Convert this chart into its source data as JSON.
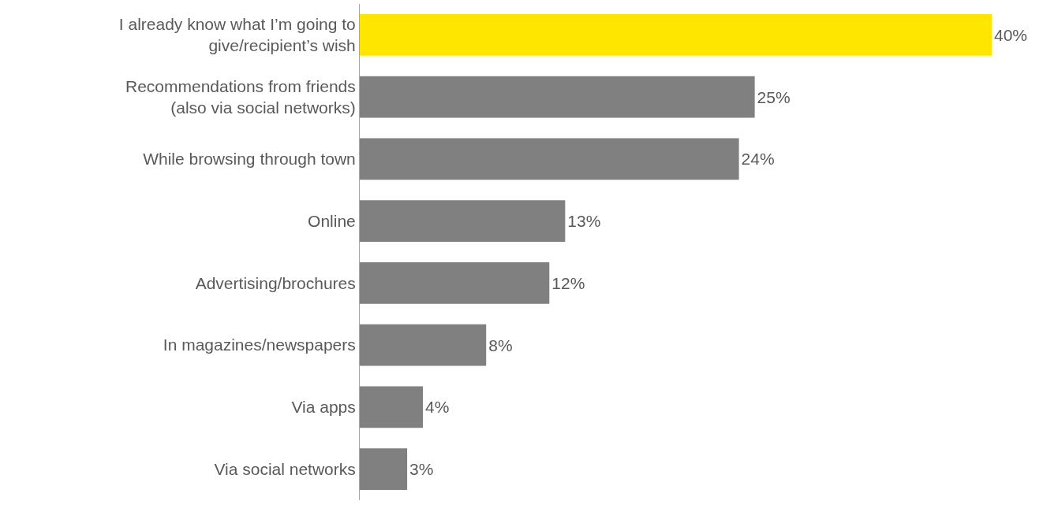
{
  "chart_data": {
    "type": "bar",
    "orientation": "horizontal",
    "categories": [
      "I already know what I’m going to give/recipient’s wish",
      "Recommendations from friends (also via social networks)",
      "While browsing through town",
      "Online",
      "Advertising/brochures",
      "In magazines/newspapers",
      "Via apps",
      "Via social networks"
    ],
    "values": [
      40,
      25,
      24,
      13,
      12,
      8,
      4,
      3
    ],
    "colors": [
      "#ffe600",
      "#808080",
      "#808080",
      "#808080",
      "#808080",
      "#808080",
      "#808080",
      "#808080"
    ],
    "value_labels": [
      "40%",
      "25%",
      "24%",
      "13%",
      "12%",
      "8%",
      "4%",
      "3%"
    ],
    "xlim": [
      0,
      40
    ],
    "tick_labels": "y"
  }
}
